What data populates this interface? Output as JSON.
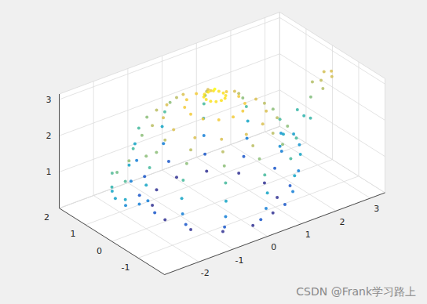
{
  "chart_data": {
    "type": "scatter3d",
    "color": "parula",
    "grid": true,
    "annotations": [
      "CSDN @Frank学习路上"
    ],
    "xlim": [
      -3,
      3.43
    ],
    "ylim": [
      -2,
      2
    ],
    "zlim": [
      0,
      3.15
    ],
    "xticks": [
      -2,
      -1,
      0,
      1,
      2,
      3
    ],
    "yticks": [
      -1,
      0,
      1,
      2
    ],
    "zticks": [
      1,
      2,
      3
    ],
    "x": [
      1.45,
      1.26,
      0.73,
      0,
      -0.73,
      -1.26,
      -1.45,
      -1.26,
      -0.73,
      0,
      0.73,
      1.26,
      1.75,
      1.52,
      0.88,
      0,
      -0.88,
      -1.52,
      -1.75,
      -1.52,
      -0.88,
      0,
      0.88,
      1.52,
      1.95,
      1.69,
      0.98,
      0,
      -0.98,
      -1.69,
      -1.95,
      -1.69,
      -0.98,
      0,
      0.98,
      1.69,
      2,
      1.73,
      1,
      0,
      -1,
      -1.73,
      -2,
      -1.73,
      -1,
      0,
      1,
      1.73,
      1.9,
      1.65,
      0.95,
      0,
      -0.95,
      -1.65,
      -1.9,
      -1.65,
      -0.95,
      0,
      0.95,
      1.65,
      1.7,
      1.47,
      0.85,
      0,
      -0.85,
      -1.47,
      -1.7,
      -1.47,
      -0.85,
      0,
      0.85,
      1.47,
      1.45,
      1.26,
      0.73,
      0,
      -0.73,
      -1.26,
      -1.45,
      -1.26,
      -0.73,
      0,
      0.73,
      1.26,
      1.2,
      1.04,
      0.6,
      0,
      -0.6,
      -1.04,
      -1.2,
      -1.04,
      -0.6,
      0,
      0.6,
      1.04,
      0.7,
      0.61,
      0.35,
      0,
      -0.35,
      -0.61,
      -0.7,
      -0.61,
      -0.35,
      0,
      0.35,
      0.61,
      0.25,
      0.22,
      0.13,
      0,
      -0.13,
      -0.22,
      -0.25,
      -0.22,
      -0.13,
      0,
      0.13,
      0.22,
      0,
      1.9,
      2.3,
      2.6,
      2.8,
      3.1,
      3.4,
      2.2,
      2.2,
      2.6,
      2.6,
      3.0,
      3.0,
      3.3,
      3.3,
      -2.0,
      -2.5,
      -2.85,
      -3.0,
      -2.9,
      -2.6,
      -2.2,
      -2.8,
      -2.8,
      -2.8,
      -2.8
    ],
    "y": [
      0,
      0.73,
      1.26,
      1.45,
      1.26,
      0.73,
      0,
      -0.73,
      -1.26,
      -1.45,
      -1.26,
      -0.73,
      0,
      0.88,
      1.52,
      1.75,
      1.52,
      0.88,
      0,
      -0.88,
      -1.52,
      -1.75,
      -1.52,
      -0.88,
      0,
      0.98,
      1.69,
      1.95,
      1.69,
      0.98,
      0,
      -0.98,
      -1.69,
      -1.95,
      -1.69,
      -0.98,
      0,
      1,
      1.73,
      2,
      1.73,
      1,
      0,
      -1,
      -1.73,
      -2,
      -1.73,
      -1,
      0,
      0.95,
      1.65,
      1.9,
      1.65,
      0.95,
      0,
      -0.95,
      -1.65,
      -1.9,
      -1.65,
      -0.95,
      0,
      0.85,
      1.47,
      1.7,
      1.47,
      0.85,
      0,
      -0.85,
      -1.47,
      -1.7,
      -1.47,
      -0.85,
      0,
      0.73,
      1.26,
      1.45,
      1.26,
      0.73,
      0,
      -0.73,
      -1.26,
      -1.45,
      -1.26,
      -0.73,
      0,
      0.6,
      1.04,
      1.2,
      1.04,
      0.6,
      0,
      -0.6,
      -1.04,
      -1.2,
      -1.04,
      -0.6,
      0,
      0.35,
      0.61,
      0.7,
      0.61,
      0.35,
      0,
      -0.35,
      -0.61,
      -0.7,
      -0.61,
      -0.35,
      0,
      0.13,
      0.22,
      0.25,
      0.22,
      0.13,
      0,
      -0.13,
      -0.22,
      -0.25,
      -0.22,
      -0.13,
      0,
      0,
      0,
      0,
      0,
      0,
      0,
      0.35,
      -0.35,
      0.25,
      -0.25,
      0.2,
      -0.2,
      0.15,
      -0.15,
      0,
      0,
      0,
      0,
      0,
      0,
      0,
      0.25,
      -0.25,
      0.25,
      -0.25
    ],
    "z": [
      0.05,
      0.05,
      0.05,
      0.05,
      0.05,
      0.05,
      0.05,
      0.05,
      0.05,
      0.05,
      0.05,
      0.05,
      0.35,
      0.35,
      0.35,
      0.35,
      0.35,
      0.35,
      0.35,
      0.35,
      0.35,
      0.35,
      0.35,
      0.35,
      0.75,
      0.75,
      0.75,
      0.75,
      0.75,
      0.75,
      0.75,
      0.75,
      0.75,
      0.75,
      0.75,
      0.75,
      1.2,
      1.2,
      1.2,
      1.2,
      1.2,
      1.2,
      1.2,
      1.2,
      1.2,
      1.2,
      1.2,
      1.2,
      1.65,
      1.65,
      1.65,
      1.65,
      1.65,
      1.65,
      1.65,
      1.65,
      1.65,
      1.65,
      1.65,
      1.65,
      2.0,
      2.0,
      2.0,
      2.0,
      2.0,
      2.0,
      2.0,
      2.0,
      2.0,
      2.0,
      2.0,
      2.0,
      2.25,
      2.25,
      2.25,
      2.25,
      2.25,
      2.25,
      2.25,
      2.25,
      2.25,
      2.25,
      2.25,
      2.25,
      2.45,
      2.45,
      2.45,
      2.45,
      2.45,
      2.45,
      2.45,
      2.45,
      2.45,
      2.45,
      2.45,
      2.45,
      2.7,
      2.7,
      2.7,
      2.7,
      2.7,
      2.7,
      2.7,
      2.7,
      2.7,
      2.7,
      2.7,
      2.7,
      2.95,
      2.95,
      2.95,
      2.95,
      2.95,
      2.95,
      2.95,
      2.95,
      2.95,
      2.95,
      2.95,
      2.95,
      3.15,
      0.9,
      1.1,
      1.5,
      1.95,
      2.3,
      2.45,
      1.0,
      1.0,
      1.55,
      1.55,
      2.2,
      2.2,
      2.4,
      2.4,
      2.0,
      2.05,
      1.85,
      1.5,
      1.15,
      0.85,
      0.75,
      1.7,
      1.7,
      1.2,
      1.2
    ]
  }
}
